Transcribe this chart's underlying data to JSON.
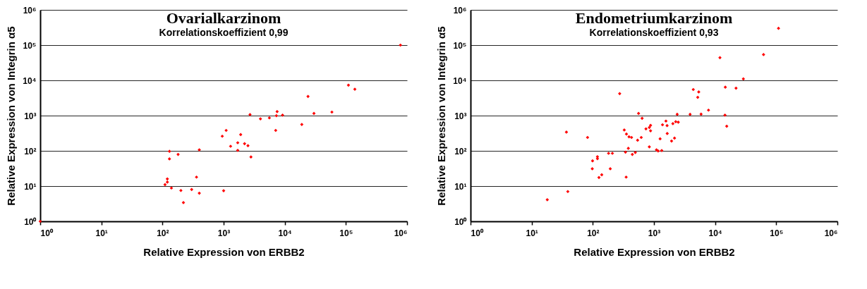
{
  "chart_data": [
    {
      "type": "scatter",
      "title": "Ovarialkarzinom",
      "subtitle": "Korrelationskoeffizient 0,99",
      "xlabel": "Relative Expression von ERBB2",
      "ylabel": "Relative Expression von Integrin α5",
      "log": "xy",
      "grid": "y",
      "marker": "diamond",
      "xlim": [
        1,
        1000000
      ],
      "ylim": [
        1,
        1000000
      ],
      "xticks": [
        {
          "value": 1,
          "label": "10⁰"
        },
        {
          "value": 10,
          "label": "10¹"
        },
        {
          "value": 100,
          "label": "10²"
        },
        {
          "value": 1000,
          "label": "10³"
        },
        {
          "value": 10000,
          "label": "10⁴"
        },
        {
          "value": 100000,
          "label": "10⁵"
        },
        {
          "value": 1000000,
          "label": "10⁶"
        }
      ],
      "yticks": [
        {
          "value": 1,
          "label": "10⁰"
        },
        {
          "value": 10,
          "label": "10¹"
        },
        {
          "value": 100,
          "label": "10²"
        },
        {
          "value": 1000,
          "label": "10³"
        },
        {
          "value": 10000,
          "label": "10⁴"
        },
        {
          "value": 100000,
          "label": "10⁵"
        },
        {
          "value": 1000000,
          "label": "10⁶"
        }
      ],
      "series": [
        {
          "color": "#ff0000",
          "x": [
            1,
            130,
            130,
            180,
            400,
            120,
            120,
            110,
            140,
            200,
            300,
            360,
            400,
            220,
            1000,
            950,
            1100,
            1300,
            1700,
            1700,
            1900,
            2200,
            2500,
            2800,
            2700,
            4000,
            5600,
            7100,
            7300,
            7500,
            9200,
            19000,
            24000,
            30000,
            59000,
            110000,
            140000,
            780000
          ],
          "values": [
            1,
            97,
            59,
            79,
            107,
            16,
            13,
            11,
            8.8,
            7.5,
            8,
            18,
            6.3,
            3.4,
            7.4,
            260,
            380,
            135,
            170,
            103,
            290,
            160,
            140,
            67,
            1070,
            810,
            860,
            380,
            990,
            1300,
            1030,
            560,
            3500,
            1150,
            1260,
            7300,
            5600,
            100000
          ]
        }
      ]
    },
    {
      "type": "scatter",
      "title": "Endometriumkarzinom",
      "subtitle": "Korrelationskoeffizient 0,93",
      "xlabel": "Relative Expression von ERBB2",
      "ylabel": "Relative Expression von Integrin α5",
      "log": "xy",
      "grid": "y",
      "marker": "diamond",
      "xlim": [
        1,
        1000000
      ],
      "ylim": [
        1,
        1000000
      ],
      "xticks": [
        {
          "value": 1,
          "label": "10⁰"
        },
        {
          "value": 10,
          "label": "10¹"
        },
        {
          "value": 100,
          "label": "10²"
        },
        {
          "value": 1000,
          "label": "10³"
        },
        {
          "value": 10000,
          "label": "10⁴"
        },
        {
          "value": 100000,
          "label": "10⁵"
        },
        {
          "value": 1000000,
          "label": "10⁶"
        }
      ],
      "yticks": [
        {
          "value": 1,
          "label": "10⁰"
        },
        {
          "value": 10,
          "label": "10¹"
        },
        {
          "value": 100,
          "label": "10²"
        },
        {
          "value": 1000,
          "label": "10³"
        },
        {
          "value": 10000,
          "label": "10⁴"
        },
        {
          "value": 100000,
          "label": "10⁵"
        },
        {
          "value": 1000000,
          "label": "10⁶"
        }
      ],
      "series": [
        {
          "color": "#ff0000",
          "x": [
            18,
            39,
            37,
            82,
            99,
            98,
            119,
            119,
            126,
            140,
            181,
            209,
            193,
            275,
            327,
            355,
            391,
            430,
            342,
            381,
            443,
            496,
            351,
            540,
            560,
            620,
            640,
            740,
            840,
            840,
            880,
            880,
            1100,
            1170,
            1260,
            1340,
            1380,
            1570,
            1640,
            1650,
            1940,
            2040,
            2170,
            2270,
            2400,
            2500,
            3900,
            4400,
            5200,
            5400,
            5900,
            7800,
            12000,
            14500,
            14700,
            15500,
            22000,
            29000,
            62000,
            109000
          ],
          "values": [
            4.1,
            7,
            340,
            240,
            52,
            31,
            68,
            60,
            17.5,
            21,
            85,
            85,
            31,
            4200,
            390,
            300,
            250,
            240,
            92,
            118,
            79,
            90,
            18,
            200,
            1150,
            240,
            840,
            420,
            130,
            460,
            530,
            370,
            107,
            99,
            220,
            102,
            550,
            700,
            520,
            310,
            190,
            590,
            230,
            670,
            1090,
            650,
            1090,
            5500,
            3300,
            4700,
            1100,
            1430,
            44000,
            1030,
            6400,
            500,
            6000,
            11000,
            54000,
            300000
          ]
        }
      ]
    }
  ]
}
